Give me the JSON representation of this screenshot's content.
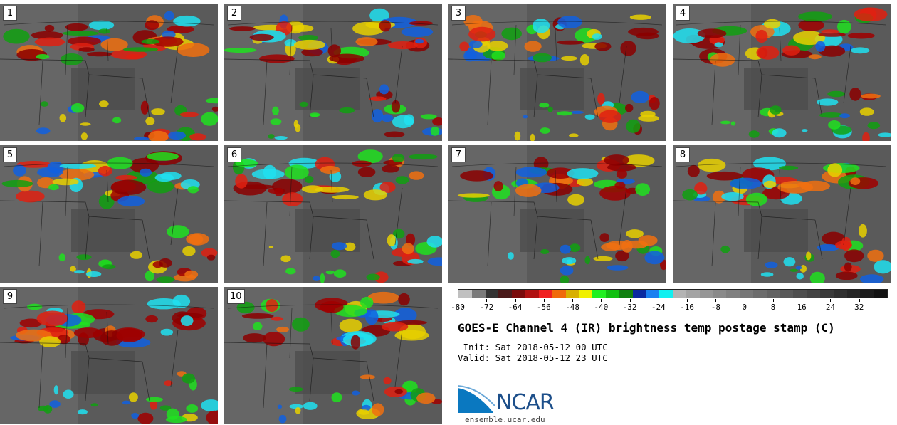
{
  "panels": [
    {
      "label": "1"
    },
    {
      "label": "2"
    },
    {
      "label": "3"
    },
    {
      "label": "4"
    },
    {
      "label": "5"
    },
    {
      "label": "6"
    },
    {
      "label": "7"
    },
    {
      "label": "8"
    },
    {
      "label": "9"
    },
    {
      "label": "10"
    }
  ],
  "colorbar": {
    "colors": [
      "#c0c0c0",
      "#7a7a7a",
      "#343434",
      "#4a1a1a",
      "#7a0a0a",
      "#b01010",
      "#f02020",
      "#f06a0a",
      "#d8b000",
      "#f0f000",
      "#20f020",
      "#10c010",
      "#108010",
      "#0a2aa0",
      "#1a80f0",
      "#10f0f0",
      "#b4b4b4",
      "#a4a4a4",
      "#969696",
      "#8a8a8a",
      "#808080",
      "#767676",
      "#6c6c6c",
      "#626262",
      "#585858",
      "#4e4e4e",
      "#444444",
      "#3a3a3a",
      "#303030",
      "#262626",
      "#1c1c1c",
      "#121212"
    ],
    "tick_labels": [
      "-80",
      "-72",
      "-64",
      "-56",
      "-48",
      "-40",
      "-32",
      "-24",
      "-16",
      "-8",
      "0",
      "8",
      "16",
      "24",
      "32"
    ],
    "min": -80,
    "max": 40
  },
  "title": "GOES-E Channel 4 (IR) brightness temp postage stamp (C)",
  "init_line": " Init: Sat 2018-05-12 00 UTC",
  "valid_line": "Valid: Sat 2018-05-12 23 UTC",
  "logo": {
    "text": "NCAR",
    "url": "ensemble.ucar.edu"
  }
}
